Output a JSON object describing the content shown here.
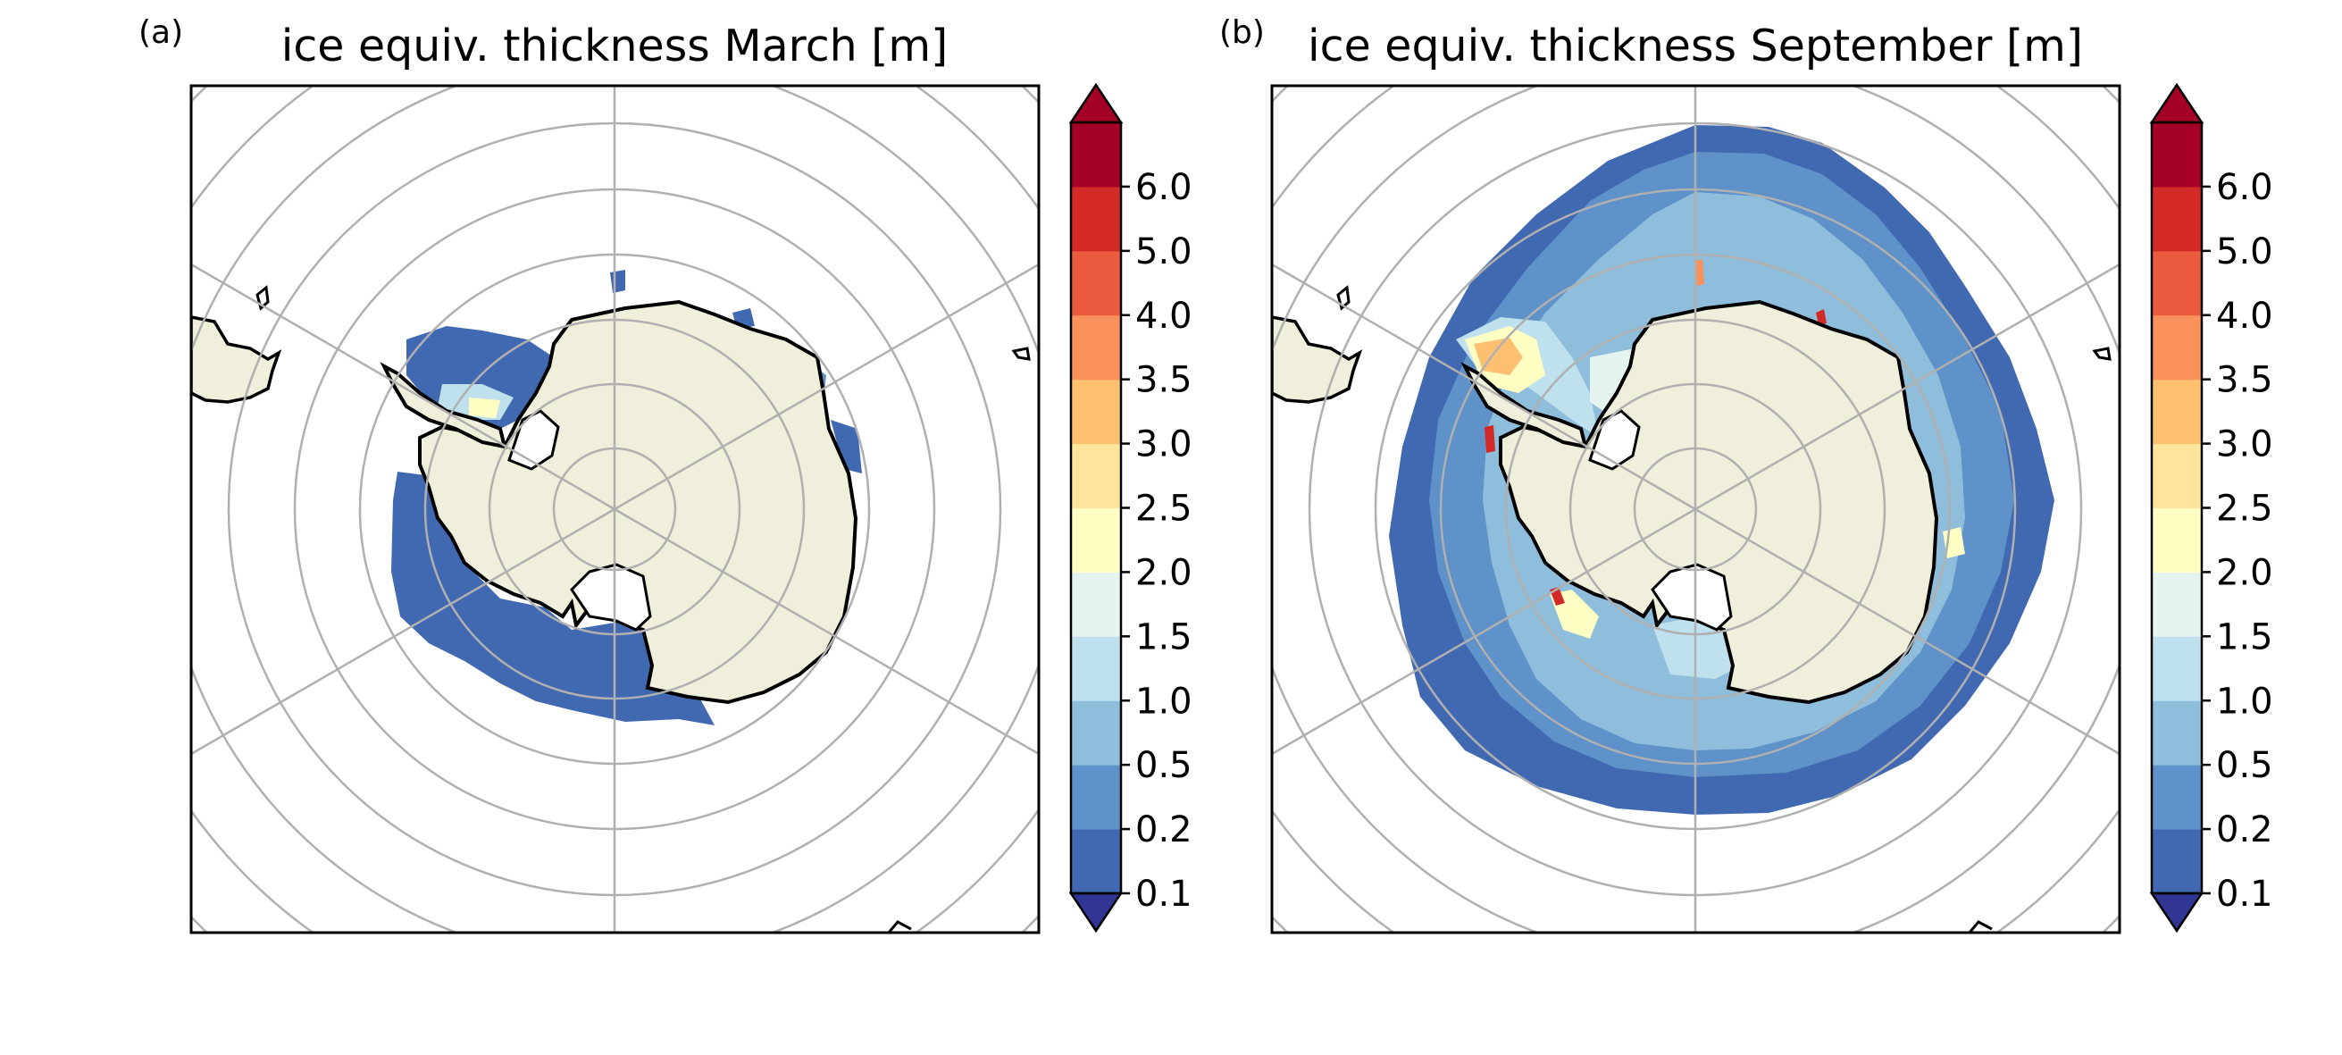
{
  "panels": [
    {
      "label": "(a)",
      "title": "ice equiv. thickness March [m]",
      "month": "March"
    },
    {
      "label": "(b)",
      "title": "ice equiv. thickness September [m]",
      "month": "September"
    }
  ],
  "colorbar": {
    "ticks": [
      "0.1",
      "0.2",
      "0.5",
      "1.0",
      "1.5",
      "2.0",
      "2.5",
      "3.0",
      "3.5",
      "4.0",
      "5.0",
      "6.0"
    ],
    "colors": [
      "#4169b1",
      "#5e92c8",
      "#8fbedc",
      "#bfe1ee",
      "#e6f4f0",
      "#ffffc4",
      "#fee59b",
      "#fdbf70",
      "#f9915a",
      "#eb5b3e",
      "#d32a27",
      "#a50026"
    ],
    "under_color": "#313695",
    "over_color": "#a50026",
    "extend": "both"
  },
  "map_colors": {
    "land": "#efefdb",
    "coastline": "#000000",
    "gridlines": "#b0b0b0",
    "ocean": "#ffffff"
  }
}
